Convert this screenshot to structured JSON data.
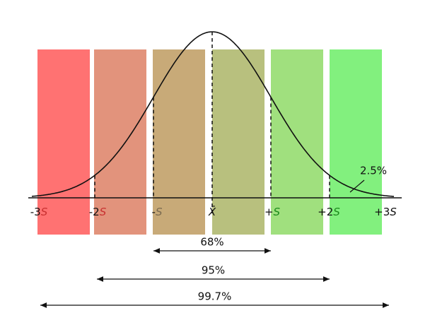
{
  "ticks": [
    {
      "prefix": "-3",
      "symbol": "S"
    },
    {
      "prefix": "-2",
      "symbol": "S"
    },
    {
      "prefix": "-",
      "symbol": "S"
    },
    {
      "symbol": "X̄"
    },
    {
      "prefix": "+",
      "symbol": "S"
    },
    {
      "prefix": "+2",
      "symbol": "S"
    },
    {
      "prefix": "+3",
      "symbol": "S"
    }
  ],
  "intervals": [
    {
      "label": "68%"
    },
    {
      "label": "95%"
    },
    {
      "label": "99.7%"
    }
  ],
  "annotation": "2.5%"
}
